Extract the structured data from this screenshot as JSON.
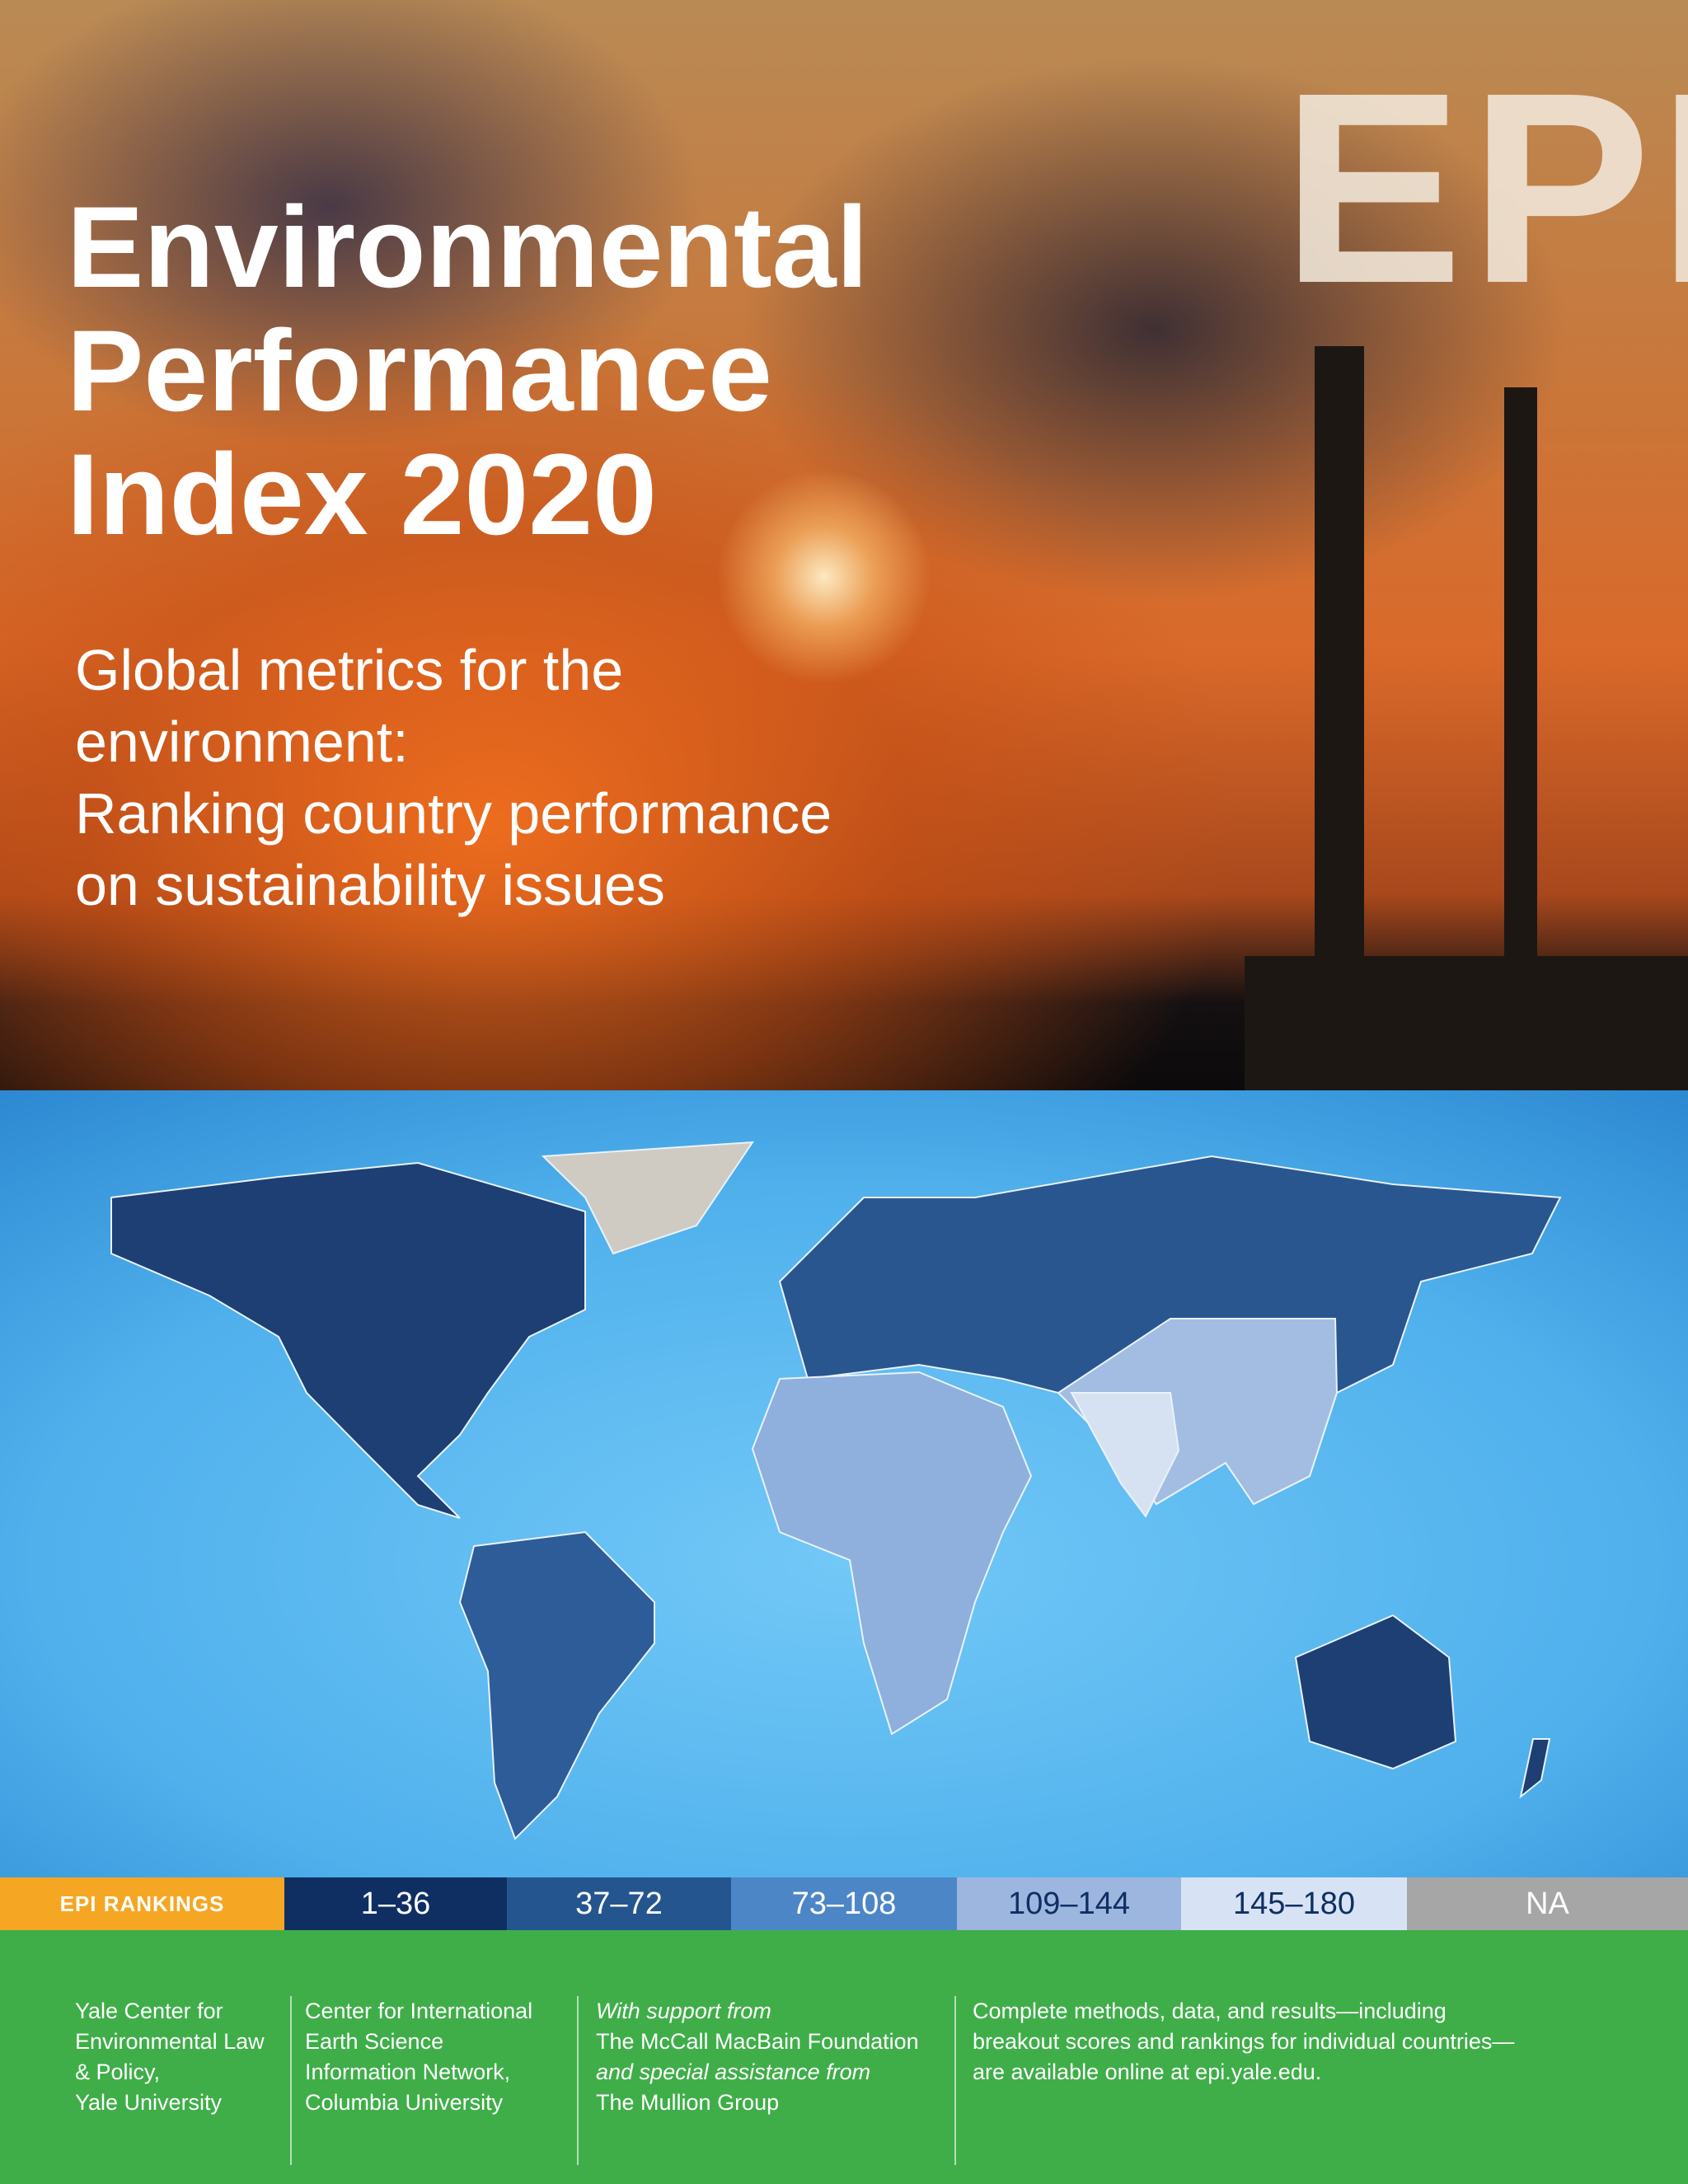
{
  "header": {
    "logo": "EPI",
    "title": [
      "Environmental",
      "Performance",
      "Index 2020"
    ],
    "subtitle": [
      "Global metrics for the",
      "environment:",
      "Ranking country performance",
      "on sustainability issues"
    ]
  },
  "legend": {
    "label": "EPI RANKINGS",
    "items": [
      "1–36",
      "37–72",
      "73–108",
      "109–144",
      "145–180",
      "NA"
    ]
  },
  "footer": {
    "columns": [
      [
        "Yale Center for",
        "Environmental Law",
        "& Policy,",
        "Yale University"
      ],
      [
        "Center for International",
        "Earth Science",
        "Information Network,",
        "Columbia University"
      ],
      [
        "With support from",
        "The McCall MacBain Foundation",
        "and special assistance from",
        "The Mullion Group"
      ],
      [
        "Complete methods, data, and results—including",
        "breakout scores and rankings for individual countries—",
        "are available online at epi.yale.edu."
      ]
    ]
  }
}
